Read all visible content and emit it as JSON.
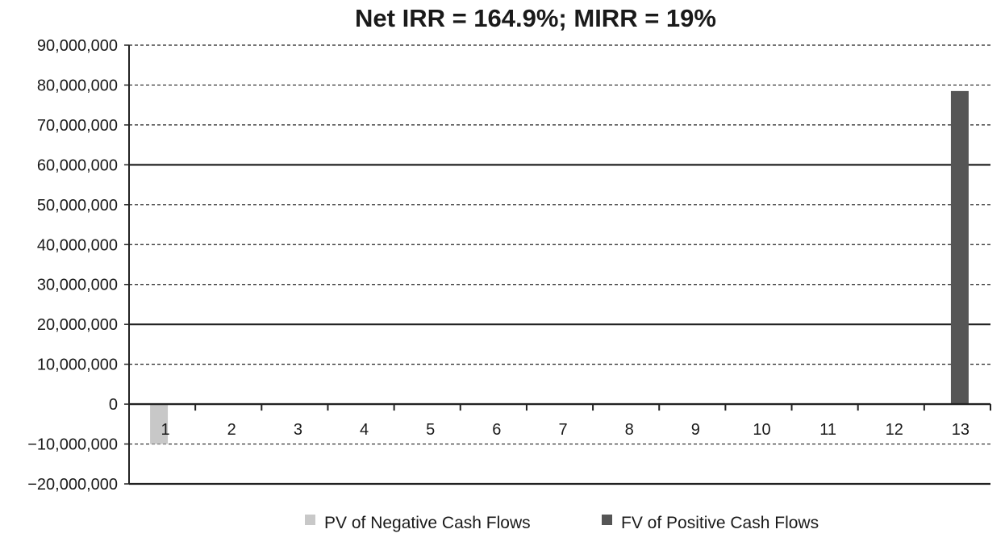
{
  "chart_data": {
    "type": "bar",
    "title": "Net IRR = 164.9%; MIRR = 19%",
    "xlabel": "",
    "ylabel": "",
    "categories": [
      "1",
      "2",
      "3",
      "4",
      "5",
      "6",
      "7",
      "8",
      "9",
      "10",
      "11",
      "12",
      "13"
    ],
    "ylim": [
      -20000000,
      90000000
    ],
    "yticks": [
      90000000,
      80000000,
      70000000,
      60000000,
      50000000,
      40000000,
      30000000,
      20000000,
      10000000,
      0,
      -10000000,
      -20000000
    ],
    "ytick_labels": [
      "90,000,000",
      "80,000,000",
      "70,000,000",
      "60,000,000",
      "50,000,000",
      "40,000,000",
      "30,000,000",
      "20,000,000",
      "10,000,000",
      "0",
      "−10,000,000",
      "−20,000,000"
    ],
    "grid": true,
    "legend_position": "bottom",
    "series": [
      {
        "name": "PV of Negative Cash Flows",
        "color": "#c8c8c8",
        "values": [
          -10000000,
          0,
          0,
          0,
          0,
          0,
          0,
          0,
          0,
          0,
          0,
          0,
          0
        ]
      },
      {
        "name": "FV of Positive Cash Flows",
        "color": "#555555",
        "values": [
          0,
          0,
          0,
          0,
          0,
          0,
          0,
          0,
          0,
          0,
          0,
          0,
          78500000
        ]
      }
    ]
  }
}
